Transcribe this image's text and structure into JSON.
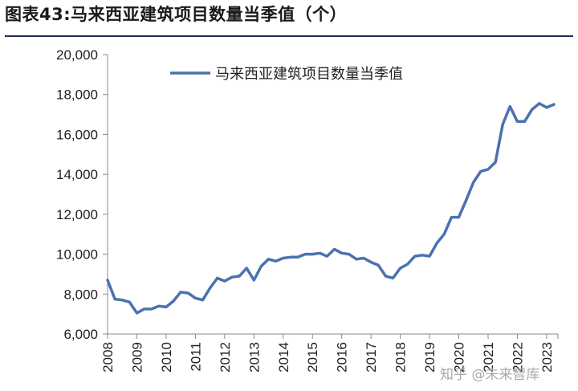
{
  "header": {
    "title": "图表43:马来西亚建筑项目数量当季值（个）"
  },
  "watermark": "知乎 @未来智库",
  "chart_data": {
    "type": "line",
    "title": "图表43:马来西亚建筑项目数量当季值（个）",
    "xlabel": "",
    "ylabel": "",
    "ylim": [
      6000,
      20000
    ],
    "yticks": [
      6000,
      8000,
      10000,
      12000,
      14000,
      16000,
      18000,
      20000
    ],
    "ytick_labels": [
      "6,000",
      "8,000",
      "10,000",
      "12,000",
      "14,000",
      "16,000",
      "18,000",
      "20,000"
    ],
    "xticks": [
      "2008",
      "2009",
      "2010",
      "2011",
      "2012",
      "2013",
      "2014",
      "2015",
      "2016",
      "2017",
      "2018",
      "2019",
      "2020",
      "2021",
      "2022",
      "2023"
    ],
    "grid": false,
    "legend": "top",
    "color": "#4a72b0",
    "series": [
      {
        "name": "马来西亚建筑项目数量当季值",
        "x": [
          "2008Q1",
          "2008Q2",
          "2008Q3",
          "2008Q4",
          "2009Q1",
          "2009Q2",
          "2009Q3",
          "2009Q4",
          "2010Q1",
          "2010Q2",
          "2010Q3",
          "2010Q4",
          "2011Q1",
          "2011Q2",
          "2011Q3",
          "2011Q4",
          "2012Q1",
          "2012Q2",
          "2012Q3",
          "2012Q4",
          "2013Q1",
          "2013Q2",
          "2013Q3",
          "2013Q4",
          "2014Q1",
          "2014Q2",
          "2014Q3",
          "2014Q4",
          "2015Q1",
          "2015Q2",
          "2015Q3",
          "2015Q4",
          "2016Q1",
          "2016Q2",
          "2016Q3",
          "2016Q4",
          "2017Q1",
          "2017Q2",
          "2017Q3",
          "2017Q4",
          "2018Q1",
          "2018Q2",
          "2018Q3",
          "2018Q4",
          "2019Q1",
          "2019Q2",
          "2019Q3",
          "2019Q4",
          "2020Q1",
          "2020Q2",
          "2020Q3",
          "2020Q4",
          "2021Q1",
          "2021Q2",
          "2021Q3",
          "2021Q4",
          "2022Q1",
          "2022Q2",
          "2022Q3",
          "2022Q4",
          "2023Q1",
          "2023Q2"
        ],
        "values": [
          8700,
          7750,
          7700,
          7600,
          7050,
          7250,
          7250,
          7400,
          7350,
          7650,
          8100,
          8050,
          7800,
          7700,
          8300,
          8800,
          8650,
          8850,
          8900,
          9300,
          8700,
          9400,
          9750,
          9650,
          9800,
          9850,
          9850,
          10000,
          10000,
          10050,
          9900,
          10250,
          10050,
          10000,
          9750,
          9800,
          9600,
          9450,
          8900,
          8800,
          9300,
          9500,
          9900,
          9950,
          9900,
          10550,
          11000,
          11850,
          11850,
          12700,
          13600,
          14150,
          14250,
          14600,
          16500,
          17400,
          16650,
          16650,
          17250,
          17550,
          17350,
          17500
        ]
      }
    ]
  }
}
